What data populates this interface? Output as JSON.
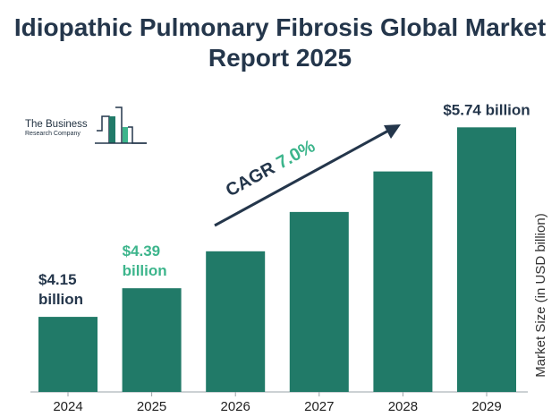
{
  "title_lines": [
    "Idiopathic Pulmonary Fibrosis Global Market",
    "Report 2025"
  ],
  "logo": {
    "line1": "The Business",
    "line2": "Research Company"
  },
  "colors": {
    "bar": "#217a68",
    "dark": "#24364b",
    "accent": "#3db58c",
    "axis": "#9aa3a8"
  },
  "chart_data": {
    "type": "bar",
    "title": "Idiopathic Pulmonary Fibrosis Global Market Report 2025",
    "categories": [
      "2024",
      "2025",
      "2026",
      "2027",
      "2028",
      "2029"
    ],
    "values": [
      4.15,
      4.39,
      4.7,
      5.03,
      5.37,
      5.74
    ],
    "ylabel": "Market Size (in USD billion)",
    "xlabel": "",
    "ylim": [
      3.52,
      5.9
    ],
    "data_labels": [
      {
        "index": 0,
        "lines": [
          "$4.15",
          "billion"
        ],
        "color": "#24364b"
      },
      {
        "index": 1,
        "lines": [
          "$4.39",
          "billion"
        ],
        "color": "#3db58c"
      },
      {
        "index": 5,
        "lines": [
          "$5.74 billion"
        ],
        "color": "#24364b"
      }
    ],
    "annotation": {
      "prefix": "CAGR ",
      "value": "7.0%"
    }
  }
}
